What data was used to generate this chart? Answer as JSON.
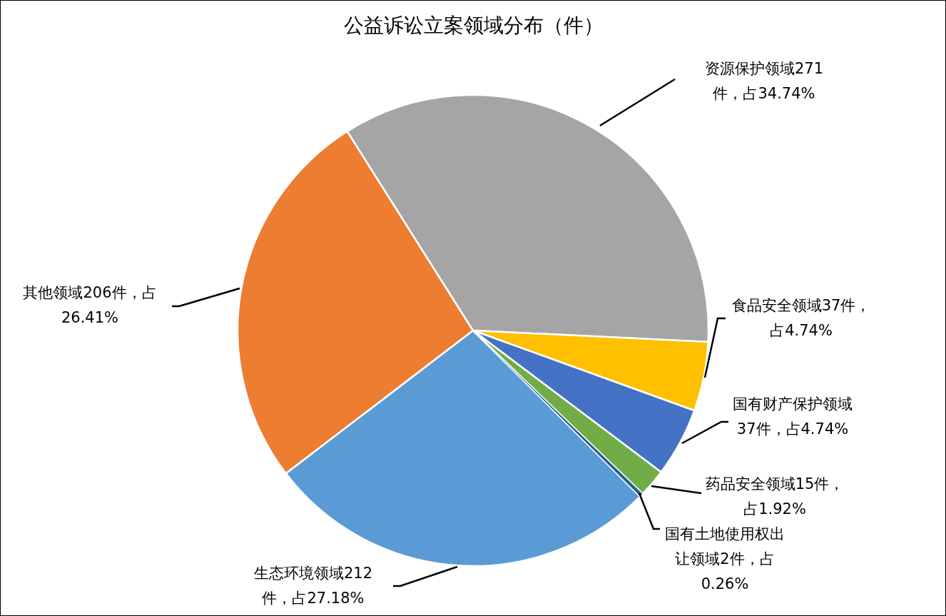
{
  "chart_data": {
    "type": "pie",
    "title": "公益诉讼立案领域分布（件）",
    "categories": [
      "生态环境领域",
      "其他领域",
      "资源保护领域",
      "食品安全领域",
      "国有财产保护领域",
      "药品安全领域",
      "国有土地使用权出让领域"
    ],
    "values": [
      212,
      206,
      271,
      37,
      37,
      15,
      2
    ],
    "colors": [
      "#5b9bd5",
      "#ed7d31",
      "#a5a5a5",
      "#ffc000",
      "#4472c4",
      "#70ad47",
      "#255e91"
    ],
    "value_labels": [
      "212件，占27.18%",
      "206件，占26.41%",
      "271件，占34.74%",
      "37件，占4.74%",
      "37件，占4.74%",
      "15件，占1.92%",
      "2件，占0.26%"
    ]
  }
}
